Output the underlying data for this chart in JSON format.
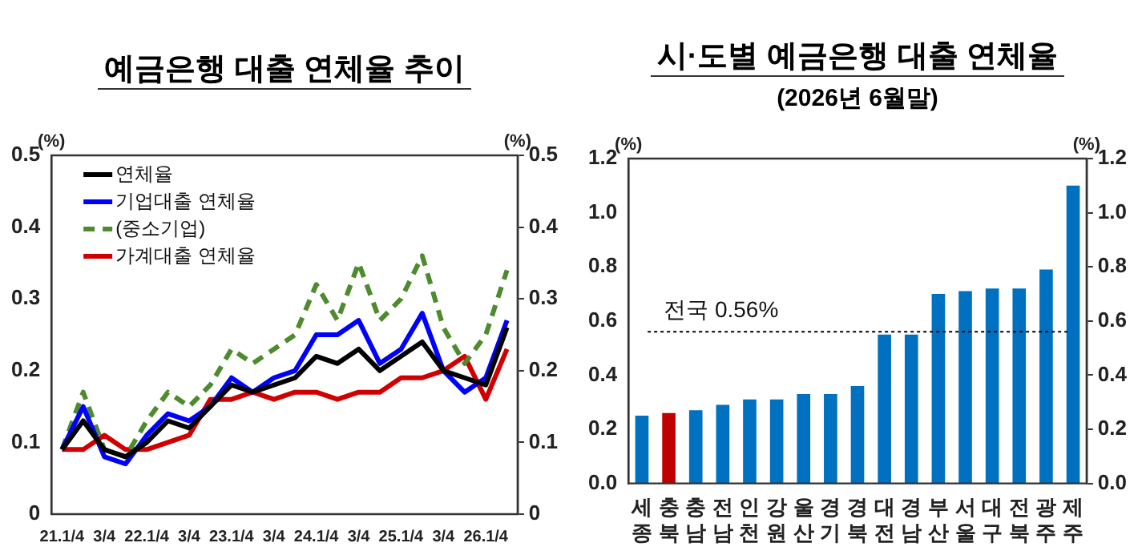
{
  "chart_data": [
    {
      "type": "line",
      "title": "예금은행 대출 연체율 추이",
      "ylabel": "(%)",
      "y2label": "(%)",
      "categories": [
        "21.1/4",
        null,
        "3/4",
        null,
        "22.1/4",
        null,
        "3/4",
        null,
        "23.1/4",
        null,
        "3/4",
        null,
        "24.1/4",
        null,
        "3/4",
        null,
        "25.1/4",
        null,
        "3/4",
        null,
        "26.1/4",
        null
      ],
      "series": [
        {
          "name": "연체율",
          "color": "#000000",
          "values": [
            0.09,
            0.13,
            0.09,
            0.08,
            0.1,
            0.13,
            0.12,
            0.15,
            0.18,
            0.17,
            0.18,
            0.19,
            0.22,
            0.21,
            0.23,
            0.2,
            0.22,
            0.24,
            0.2,
            0.19,
            0.18,
            0.26
          ]
        },
        {
          "name": "기업대출 연체율",
          "color": "#0000ff",
          "values": [
            0.09,
            0.15,
            0.08,
            0.07,
            0.11,
            0.14,
            0.13,
            0.15,
            0.19,
            0.17,
            0.19,
            0.2,
            0.25,
            0.25,
            0.27,
            0.21,
            0.23,
            0.28,
            0.2,
            0.17,
            0.19,
            0.27
          ]
        },
        {
          "name": "(중소기업)",
          "color": "#4e8a2e",
          "line_style": "dashed",
          "values": [
            0.09,
            0.17,
            0.09,
            0.08,
            0.13,
            0.17,
            0.15,
            0.18,
            0.23,
            0.21,
            0.23,
            0.25,
            0.32,
            0.27,
            0.35,
            0.27,
            0.3,
            0.36,
            0.26,
            0.21,
            0.25,
            0.34
          ]
        },
        {
          "name": "가계대출 연체율",
          "color": "#d00000",
          "values": [
            0.09,
            0.09,
            0.11,
            0.09,
            0.09,
            0.1,
            0.11,
            0.16,
            0.16,
            0.17,
            0.16,
            0.17,
            0.17,
            0.16,
            0.17,
            0.17,
            0.19,
            0.19,
            0.2,
            0.22,
            0.16,
            0.23
          ]
        }
      ],
      "ylim": [
        0,
        0.5
      ],
      "yticks": [
        0,
        0.1,
        0.2,
        0.3,
        0.4,
        0.5
      ],
      "y2lim": [
        0,
        0.5
      ],
      "y2ticks": [
        0,
        0.1,
        0.2,
        0.3,
        0.4,
        0.5
      ],
      "legend": "top left",
      "marker": "none",
      "line_style": "solid",
      "grid": false
    },
    {
      "type": "bar",
      "title": "시·도별 예금은행 대출 연체율",
      "subtitle": "(2026년 6월말)",
      "ylabel": "(%)",
      "y2label": "(%)",
      "categories": [
        "세종",
        "충북",
        "충남",
        "전남",
        "인천",
        "강원",
        "울산",
        "경기",
        "경북",
        "대전",
        "경남",
        "부산",
        "서울",
        "대구",
        "전북",
        "광주",
        "제주"
      ],
      "values": [
        0.25,
        0.26,
        0.27,
        0.29,
        0.31,
        0.31,
        0.33,
        0.33,
        0.36,
        0.55,
        0.55,
        0.7,
        0.71,
        0.72,
        0.72,
        0.79,
        1.1
      ],
      "colors": [
        "#0070c0",
        "#c00000",
        "#0070c0",
        "#0070c0",
        "#0070c0",
        "#0070c0",
        "#0070c0",
        "#0070c0",
        "#0070c0",
        "#0070c0",
        "#0070c0",
        "#0070c0",
        "#0070c0",
        "#0070c0",
        "#0070c0",
        "#0070c0",
        "#0070c0"
      ],
      "ylim": [
        0,
        1.2
      ],
      "yticks": [
        {
          "value": 0,
          "label": "0.0"
        },
        {
          "value": 0.2,
          "label": "0.2"
        },
        {
          "value": 0.4,
          "label": "0.4"
        },
        {
          "value": 0.6,
          "label": "0.6"
        },
        {
          "value": 0.8,
          "label": "0.8"
        },
        {
          "value": 1,
          "label": "1.0"
        },
        {
          "value": 1.2,
          "label": "1.2"
        }
      ],
      "y2lim": [
        0,
        1.2
      ],
      "y2ticks": [
        {
          "value": 0,
          "label": "0.0"
        },
        {
          "value": 0.2,
          "label": "0.2"
        },
        {
          "value": 0.4,
          "label": "0.4"
        },
        {
          "value": 0.6,
          "label": "0.6"
        },
        {
          "value": 0.8,
          "label": "0.8"
        },
        {
          "value": 1,
          "label": "1.0"
        },
        {
          "value": 1.2,
          "label": "1.2"
        }
      ],
      "ref_lines": [
        {
          "axis": "y",
          "value": 0.56,
          "label": "전국 0.56%",
          "line_style": "dotted",
          "color": "#000000"
        }
      ],
      "grid": false
    }
  ]
}
